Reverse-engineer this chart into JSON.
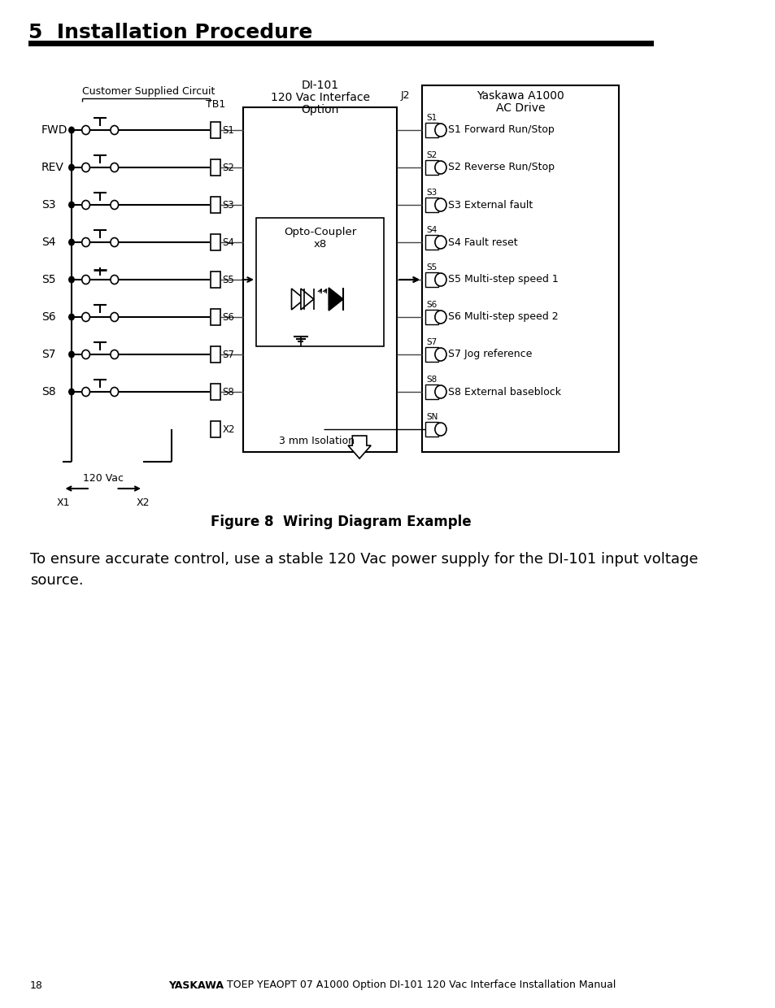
{
  "title": "5  Installation Procedure",
  "figure_caption": "Figure 8  Wiring Diagram Example",
  "body_text": "To ensure accurate control, use a stable 120 Vac power supply for the DI-101 input voltage\nsource.",
  "bg_color": "#ffffff",
  "text_color": "#000000",
  "title_fontsize": 18,
  "body_fontsize": 13,
  "caption_fontsize": 12,
  "left_labels": [
    "FWD",
    "REV",
    "S3",
    "S4",
    "S5",
    "S6",
    "S7",
    "S8"
  ],
  "tb1_labels": [
    "S1",
    "S2",
    "S3",
    "S4",
    "S5",
    "S6",
    "S7",
    "S8",
    "X2"
  ],
  "right_labels": [
    "S1 Forward Run/Stop",
    "S2 Reverse Run/Stop",
    "S3 External fault",
    "S4 Fault reset",
    "S5 Multi-step speed 1",
    "S6 Multi-step speed 2",
    "S7 Jog reference",
    "S8 External baseblock"
  ],
  "right_ids": [
    "S1",
    "S2",
    "S3",
    "S4",
    "S5",
    "S6",
    "S7",
    "S8"
  ]
}
